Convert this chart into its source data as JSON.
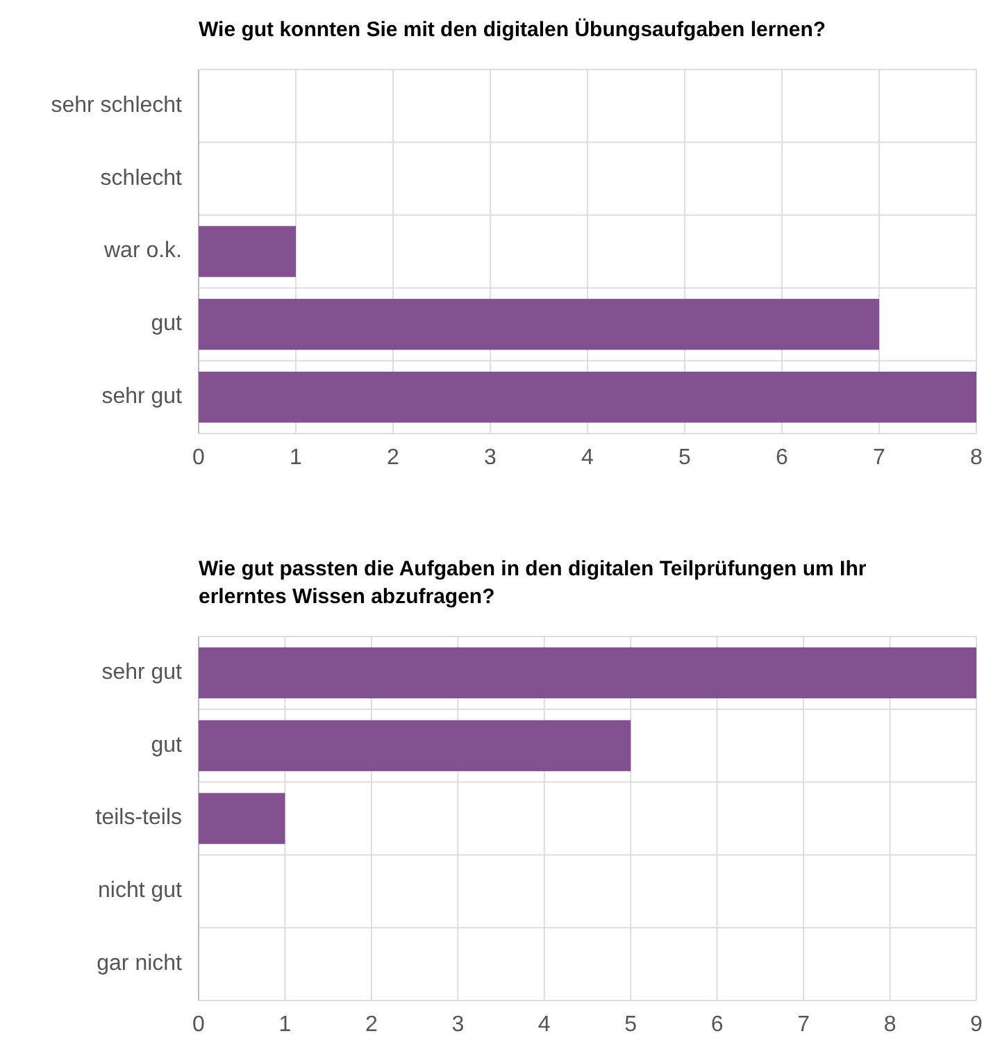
{
  "chart_data": [
    {
      "type": "bar",
      "orientation": "horizontal",
      "title": "Wie gut konnten Sie mit den digitalen Übungsaufgaben lernen?",
      "categories": [
        "sehr schlecht",
        "schlecht",
        "war o.k.",
        "gut",
        "sehr gut"
      ],
      "values": [
        0,
        0,
        1,
        7,
        8
      ],
      "color": "#80508f",
      "xlim": [
        0,
        8
      ],
      "xticks": [
        0,
        1,
        2,
        3,
        4,
        5,
        6,
        7,
        8
      ],
      "grid": true
    },
    {
      "type": "bar",
      "orientation": "horizontal",
      "title": "Wie gut passten die Aufgaben in den digitalen Teilprüfungen um Ihr erlerntes Wissen abzufragen?",
      "categories": [
        "sehr gut",
        "gut",
        "teils-teils",
        "nicht gut",
        "gar nicht"
      ],
      "values": [
        9,
        5,
        1,
        0,
        0
      ],
      "color": "#80508f",
      "xlim": [
        0,
        9
      ],
      "xticks": [
        0,
        1,
        2,
        3,
        4,
        5,
        6,
        7,
        8,
        9
      ],
      "grid": true
    }
  ]
}
